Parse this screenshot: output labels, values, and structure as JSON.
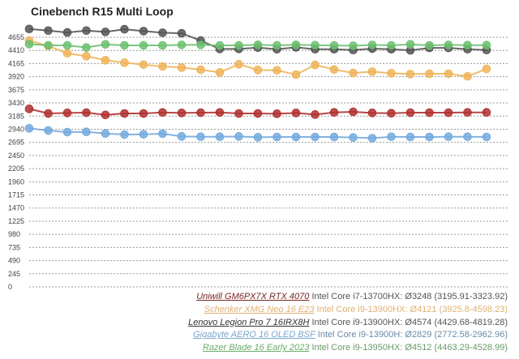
{
  "chart_data": {
    "type": "line",
    "title": "Cinebench R15 Multi Loop",
    "xlabel": "",
    "ylabel": "",
    "ylim": [
      0,
      4655
    ],
    "y_ticks": [
      0,
      245,
      490,
      735,
      980,
      1225,
      1470,
      1715,
      1960,
      2205,
      2450,
      2695,
      2940,
      3185,
      3430,
      3675,
      3920,
      4165,
      4410,
      4655
    ],
    "grid": true,
    "legend_position": "bottom-right",
    "x": [
      1,
      2,
      3,
      4,
      5,
      6,
      7,
      8,
      9,
      10,
      11,
      12,
      13,
      14,
      15,
      16,
      17,
      18,
      19,
      20,
      21,
      22,
      23,
      24,
      25
    ],
    "series": [
      {
        "name": "Uniwill GM6PX7X RTX 4070",
        "cpu": "Intel Core i7-13700HX: Ø3248 (3195.91-3323.92)",
        "color": "#b03030",
        "name_color": "#7a2424",
        "text_color": "#555555",
        "values": [
          3320,
          3234,
          3244,
          3249,
          3208,
          3234,
          3234,
          3253,
          3244,
          3249,
          3253,
          3234,
          3234,
          3229,
          3244,
          3214,
          3254,
          3264,
          3244,
          3239,
          3249,
          3249,
          3249,
          3254,
          3254
        ]
      },
      {
        "name": "Schenker XMG Neo 16 E23",
        "cpu": "Intel Core i9-13900HX: Ø4121 (3925.8-4598.23)",
        "color": "#f0b45a",
        "name_color": "#e0b070",
        "text_color": "#e0b070",
        "values": [
          4593,
          4493,
          4357,
          4302,
          4227,
          4181,
          4145,
          4110,
          4091,
          4050,
          4000,
          4151,
          4045,
          4039,
          3959,
          4140,
          4054,
          3989,
          4014,
          3984,
          3969,
          3974,
          3974,
          3926,
          4065
        ]
      },
      {
        "name": "Lenovo Legion Pro 7 16IRX8H",
        "cpu": "Intel Core i9-13900HX: Ø4574 (4429.68-4819.28)",
        "color": "#555555",
        "name_color": "#333333",
        "text_color": "#555555",
        "values": [
          4810,
          4779,
          4744,
          4779,
          4755,
          4805,
          4770,
          4740,
          4729,
          4593,
          4438,
          4438,
          4462,
          4432,
          4468,
          4432,
          4432,
          4417,
          4443,
          4432,
          4412,
          4457,
          4457,
          4432,
          4417
        ]
      },
      {
        "name": "Gigabyte AERO 16 OLED BSF",
        "cpu": "Intel Core i9-13900H: Ø2829 (2772.58-2962.96)",
        "color": "#74aade",
        "name_color": "#7aa6cc",
        "text_color": "#6a8aa8",
        "values": [
          2957,
          2916,
          2886,
          2891,
          2861,
          2841,
          2846,
          2856,
          2806,
          2800,
          2800,
          2806,
          2791,
          2796,
          2796,
          2796,
          2796,
          2786,
          2773,
          2800,
          2796,
          2796,
          2800,
          2800,
          2796
        ]
      },
      {
        "name": "Razer Blade 16 Early 2023",
        "cpu": "Intel Core i9-13950HX: Ø4512 (4463.29-4528.99)",
        "color": "#6cc070",
        "name_color": "#6aaa6a",
        "text_color": "#6a9a6a",
        "values": [
          4528,
          4503,
          4503,
          4464,
          4523,
          4503,
          4503,
          4503,
          4513,
          4513,
          4503,
          4503,
          4515,
          4503,
          4515,
          4508,
          4503,
          4497,
          4513,
          4503,
          4523,
          4503,
          4513,
          4508,
          4508
        ]
      }
    ]
  }
}
